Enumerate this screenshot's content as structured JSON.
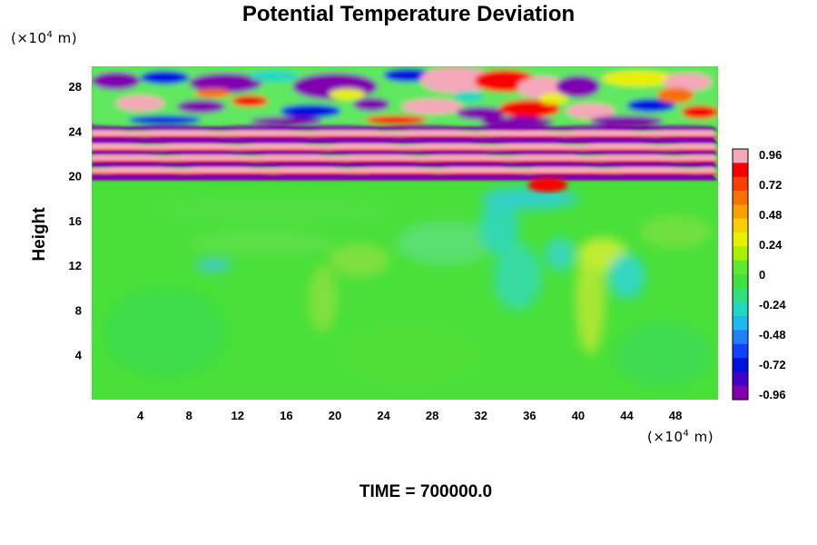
{
  "chart_data": {
    "type": "heatmap",
    "title": "Potential Temperature Deviation",
    "ylabel": "Height",
    "xlabel": "",
    "x_unit": "(×10",
    "y_unit": "(×10",
    "unit_exponent": "4",
    "unit_suffix": " m)",
    "xlim": [
      0,
      51.5
    ],
    "ylim": [
      0,
      29.8
    ],
    "x_ticks": [
      4,
      8,
      12,
      16,
      20,
      24,
      28,
      32,
      36,
      40,
      44,
      48
    ],
    "y_ticks": [
      4,
      8,
      12,
      16,
      20,
      24,
      28
    ],
    "colorbar": {
      "ticks": [
        "0.96",
        "0.72",
        "0.48",
        "0.24",
        "0",
        "-0.24",
        "-0.48",
        "-0.72",
        "-0.96"
      ],
      "range": [
        -0.96,
        0.96
      ],
      "colors": [
        "#f4a8b8",
        "#f80000",
        "#f84000",
        "#f87000",
        "#f8a000",
        "#f8d000",
        "#e8f000",
        "#a8f000",
        "#60e830",
        "#40e040",
        "#30e080",
        "#20d8c0",
        "#20b8f0",
        "#2080f8",
        "#1040f8",
        "#0010e0",
        "#4000c8",
        "#8000b0"
      ]
    },
    "background_value": -0.05,
    "regions": [
      {
        "y": [
          0,
          19.6
        ],
        "x": [
          0,
          51.5
        ],
        "description_value": -0.05
      },
      {
        "y": [
          19.6,
          24.5
        ],
        "x": [
          0,
          51.5
        ],
        "pattern": "alternating bands from -0.96 to 0.96"
      },
      {
        "y": [
          24.5,
          29.8
        ],
        "x": [
          0,
          51.5
        ],
        "pattern": "wave cells from -0.96 to 0.96"
      }
    ],
    "footer": "TIME = 700000.0"
  }
}
